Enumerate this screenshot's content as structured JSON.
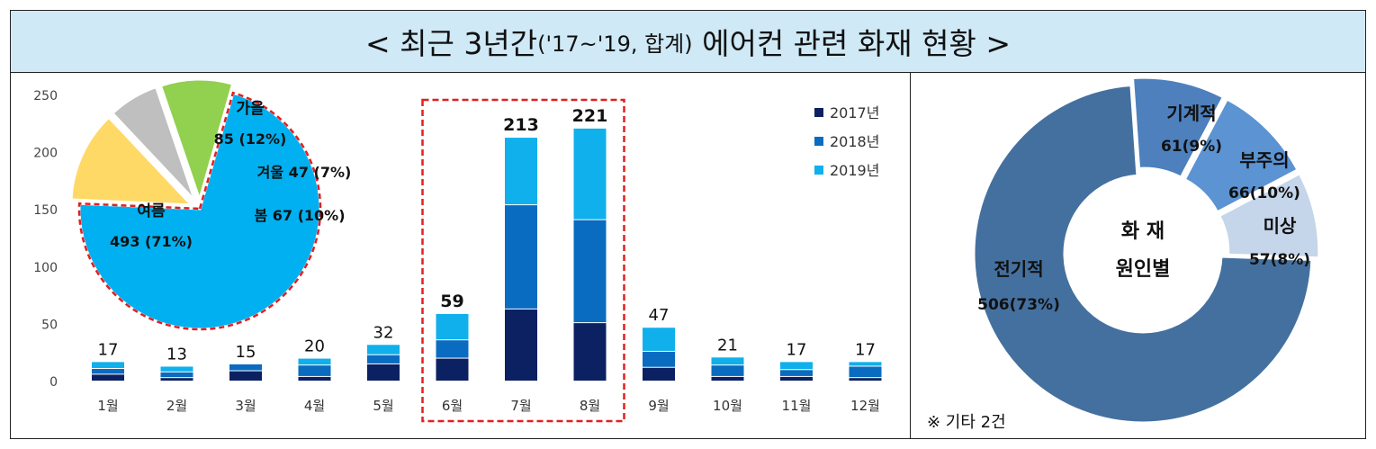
{
  "title": {
    "prefix": "< 최근 3년간",
    "paren": "('17~'19, 합계)",
    "suffix": " 에어컨 관련 화재 현황 >"
  },
  "note": "※ 기타 2건",
  "colors": {
    "y2017": "#0c2161",
    "y2018": "#0a6cc0",
    "y2019": "#10b0ec",
    "highlight": "#e02020"
  },
  "chart_data": [
    {
      "type": "bar",
      "stacked": true,
      "categories": [
        "1월",
        "2월",
        "3월",
        "4월",
        "5월",
        "6월",
        "7월",
        "8월",
        "9월",
        "10월",
        "11월",
        "12월"
      ],
      "series": [
        {
          "name": "2017년",
          "values": [
            6,
            3,
            9,
            4,
            15,
            20,
            63,
            51,
            12,
            4,
            4,
            3
          ]
        },
        {
          "name": "2018년",
          "values": [
            5,
            5,
            6,
            10,
            8,
            16,
            91,
            90,
            14,
            10,
            6,
            10
          ]
        },
        {
          "name": "2019년",
          "values": [
            6,
            5,
            0,
            6,
            9,
            23,
            59,
            80,
            21,
            7,
            7,
            4
          ]
        }
      ],
      "totals": [
        17,
        13,
        15,
        20,
        32,
        59,
        213,
        221,
        47,
        21,
        17,
        17
      ],
      "yticks": [
        0,
        50,
        100,
        150,
        200,
        250
      ],
      "ylim": [
        0,
        250
      ],
      "legend_position": "top-right",
      "highlighted_categories": [
        "6월",
        "7월",
        "8월"
      ]
    },
    {
      "type": "pie",
      "labels": [
        "여름",
        "가을",
        "겨울",
        "봄"
      ],
      "values": [
        493,
        85,
        47,
        67
      ],
      "value_labels": [
        "493 (71%)",
        "85 (12%)",
        "47 (7%)",
        "67 (10%)"
      ],
      "colors": [
        "#00b0f0",
        "#ffd966",
        "#bfbfbf",
        "#92d050"
      ]
    },
    {
      "type": "pie",
      "donut": true,
      "center_label": [
        "화 재",
        "원인별"
      ],
      "labels": [
        "전기적",
        "기계적",
        "부주의",
        "미상"
      ],
      "values": [
        506,
        61,
        66,
        57
      ],
      "value_labels": [
        "506(73%)",
        "61(9%)",
        "66(10%)",
        "57(8%)"
      ],
      "colors": [
        "#44709f",
        "#4d80bd",
        "#5b93d3",
        "#c5d5ea"
      ]
    }
  ]
}
